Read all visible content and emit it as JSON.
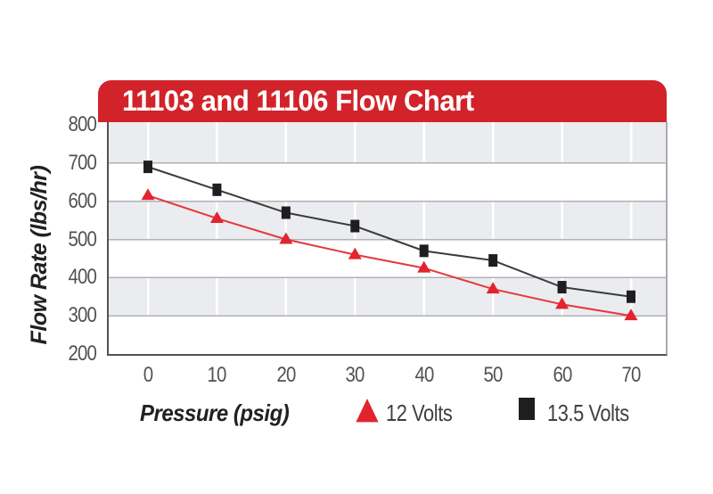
{
  "header": {
    "title": "11103 and 11106 Flow Chart",
    "background": "#d2232a",
    "text_color": "#ffffff"
  },
  "chart_data": {
    "type": "line",
    "title": "11103 and 11106 Flow Chart",
    "xlabel": "Pressure (psig)",
    "ylabel": "Flow Rate (lbs/hr)",
    "x": [
      0,
      10,
      20,
      30,
      40,
      50,
      60,
      70
    ],
    "series": [
      {
        "name": "12 Volts",
        "marker": "triangle",
        "color": "#e2242e",
        "line_color": "#e4383f",
        "values": [
          615,
          555,
          500,
          460,
          425,
          370,
          330,
          300
        ]
      },
      {
        "name": "13.5 Volts",
        "marker": "square",
        "color": "#1e1e1e",
        "line_color": "#3b3b3b",
        "values": [
          690,
          630,
          570,
          535,
          470,
          445,
          375,
          350
        ]
      }
    ],
    "xticks": [
      0,
      10,
      20,
      30,
      40,
      50,
      60,
      70
    ],
    "yticks": [
      800,
      700,
      600,
      500,
      400,
      300,
      200
    ],
    "ylim": [
      200,
      800
    ],
    "grid": "horizontal-bands",
    "band_color": "#ebecef",
    "grid_color": "#b0b2b6",
    "vgrid_color": "#ffffff",
    "legend_position": "bottom"
  }
}
